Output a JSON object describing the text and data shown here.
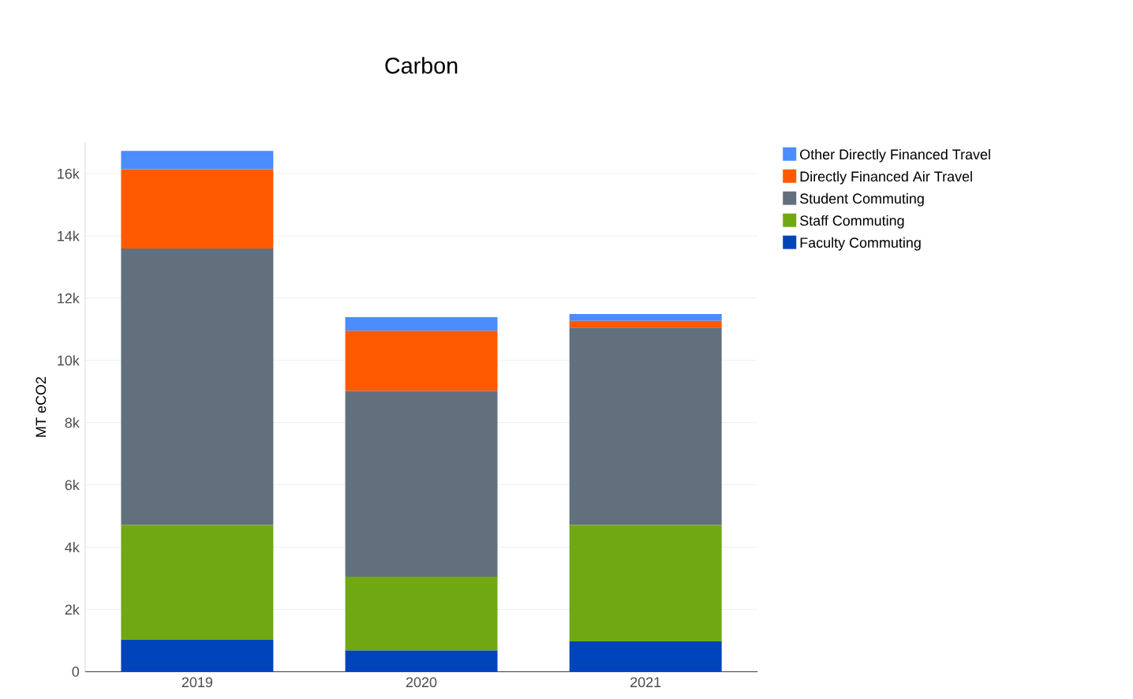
{
  "chart_data": {
    "type": "bar",
    "title": "Carbon",
    "ylabel": "MT eCO2",
    "stacked": true,
    "categories": [
      "2019",
      "2020",
      "2021"
    ],
    "series": [
      {
        "name": "Faculty Commuting",
        "color": "#0044bb",
        "values": [
          1020,
          680,
          970
        ]
      },
      {
        "name": "Staff Commuting",
        "color": "#70a814",
        "values": [
          3690,
          2370,
          3740
        ]
      },
      {
        "name": "Student Commuting",
        "color": "#62707e",
        "values": [
          8880,
          5970,
          6340
        ]
      },
      {
        "name": "Directly Financed Air Travel",
        "color": "#ff5a00",
        "values": [
          2550,
          1930,
          220
        ]
      },
      {
        "name": "Other Directly Financed Travel",
        "color": "#4b8cff",
        "values": [
          590,
          440,
          220
        ]
      }
    ],
    "ylim": [
      0,
      17000
    ],
    "yticks": [
      0,
      {
        "value": 2000,
        "label": "2k"
      },
      {
        "value": 4000,
        "label": "4k"
      },
      {
        "value": 6000,
        "label": "6k"
      },
      {
        "value": 8000,
        "label": "8k"
      },
      {
        "value": 10000,
        "label": "10k"
      },
      {
        "value": 12000,
        "label": "12k"
      },
      {
        "value": 14000,
        "label": "14k"
      },
      {
        "value": 16000,
        "label": "16k"
      }
    ],
    "grid": "y",
    "legend": "top right"
  }
}
